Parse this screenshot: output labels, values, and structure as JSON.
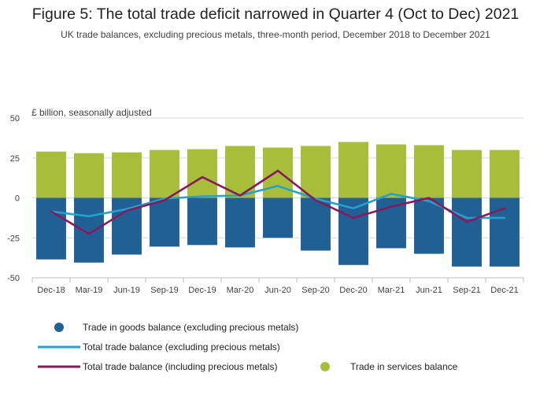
{
  "chart_data": {
    "type": "bar",
    "title": "Figure 5: The total trade deficit narrowed in Quarter 4 (Oct to Dec) 2021",
    "subtitle": "UK trade balances, excluding precious metals, three-month period, December 2018 to December 2021",
    "ylabel": "£ billion, seasonally adjusted",
    "ylim": [
      -50,
      50
    ],
    "yticks": [
      50,
      25,
      0,
      -25,
      -50
    ],
    "grid": true,
    "stacked": true,
    "categories": [
      "Dec-18",
      "Mar-19",
      "Jun-19",
      "Sep-19",
      "Dec-19",
      "Mar-20",
      "Jun-20",
      "Sep-20",
      "Dec-20",
      "Mar-21",
      "Jun-21",
      "Sep-21",
      "Dec-21"
    ],
    "series": [
      {
        "name": "Trade in goods balance (excluding precious metals)",
        "kind": "bar",
        "color": "#206095",
        "values": [
          -38.5,
          -40.5,
          -35.5,
          -30.5,
          -29.5,
          -31,
          -25,
          -33,
          -42,
          -31.5,
          -35,
          -43,
          -43
        ]
      },
      {
        "name": "Trade in services balance",
        "kind": "bar",
        "color": "#a8bd3a",
        "values": [
          29,
          28,
          28.5,
          30,
          30.5,
          32.5,
          31.5,
          32.5,
          35,
          33.5,
          33,
          30,
          30
        ]
      },
      {
        "name": "Total trade balance (excluding precious metals)",
        "kind": "line",
        "color": "#27a0cc",
        "values": [
          -8.5,
          -11.5,
          -7,
          -0.5,
          1,
          1.5,
          7.5,
          -0.5,
          -6.5,
          2.5,
          -2,
          -12.5,
          -12.5
        ]
      },
      {
        "name": "Total trade balance (including precious metals)",
        "kind": "line",
        "color": "#871a5b",
        "values": [
          -8.5,
          -22.5,
          -8,
          -1.5,
          13,
          1.5,
          17,
          -1.5,
          -12.5,
          -5.5,
          0,
          -15,
          -6.5
        ]
      }
    ],
    "legend": {
      "position": "bottom",
      "order": [
        0,
        2,
        3,
        1
      ]
    }
  }
}
